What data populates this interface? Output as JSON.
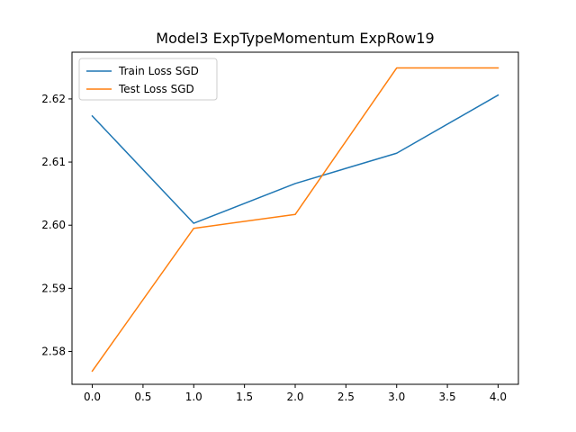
{
  "chart_data": {
    "type": "line",
    "title": "Model3 ExpTypeMomentum ExpRow19",
    "xlabel": "",
    "ylabel": "",
    "xlim": [
      -0.2,
      4.2
    ],
    "ylim": [
      2.5748,
      2.6274
    ],
    "xticks": [
      "0.0",
      "0.5",
      "1.0",
      "1.5",
      "2.0",
      "2.5",
      "3.0",
      "3.5",
      "4.0"
    ],
    "yticks": [
      "2.58",
      "2.59",
      "2.60",
      "2.61",
      "2.62"
    ],
    "x": [
      0,
      1,
      2,
      3,
      4
    ],
    "series": [
      {
        "name": "Train Loss SGD",
        "color": "#1f77b4",
        "values": [
          2.6173,
          2.6003,
          2.6066,
          2.6114,
          2.6206
        ]
      },
      {
        "name": "Test Loss SGD",
        "color": "#ff7f0e",
        "values": [
          2.5769,
          2.5995,
          2.6017,
          2.6249,
          2.6249
        ]
      }
    ],
    "grid": false,
    "legend_position": "top-left"
  }
}
